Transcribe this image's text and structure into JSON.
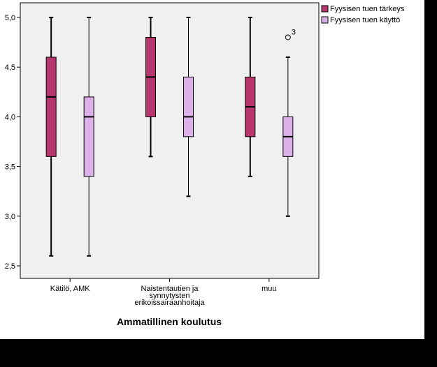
{
  "chart_data": {
    "type": "boxplot",
    "categories": [
      [
        "Kätilö, AMK"
      ],
      [
        "Naistentautien ja",
        "synnytysten",
        "erikoissairaanhoitaja"
      ],
      [
        "muu"
      ]
    ],
    "xlabel": "Ammatillinen koulutus",
    "ylabel": "",
    "ylim": [
      2.5,
      5.0
    ],
    "yticks": [
      2.5,
      3.0,
      3.5,
      4.0,
      4.5,
      5.0
    ],
    "ytick_labels": [
      "2,5",
      "3,0",
      "3,5",
      "4,0",
      "4,5",
      "5,0"
    ],
    "grid": false,
    "legend_position": "top-right",
    "series": [
      {
        "name": "Fyysisen tuen tärkeys",
        "color": "#b8366e",
        "boxes": [
          {
            "min": 2.6,
            "q1": 3.6,
            "median": 4.2,
            "q3": 4.6,
            "max": 5.0
          },
          {
            "min": 3.6,
            "q1": 4.0,
            "median": 4.4,
            "q3": 4.8,
            "max": 5.0
          },
          {
            "min": 3.4,
            "q1": 3.8,
            "median": 4.1,
            "q3": 4.4,
            "max": 5.0
          }
        ]
      },
      {
        "name": "Fyysisen tuen käyttö",
        "color": "#dcb0e8",
        "boxes": [
          {
            "min": 2.6,
            "q1": 3.4,
            "median": 4.0,
            "q3": 4.2,
            "max": 5.0
          },
          {
            "min": 3.2,
            "q1": 3.8,
            "median": 4.0,
            "q3": 4.4,
            "max": 5.0
          },
          {
            "min": 3.0,
            "q1": 3.6,
            "median": 3.8,
            "q3": 4.0,
            "max": 4.6,
            "outliers": [
              {
                "value": 4.8,
                "label": "3"
              }
            ]
          }
        ]
      }
    ],
    "plot_background": "#f0f0f0"
  }
}
